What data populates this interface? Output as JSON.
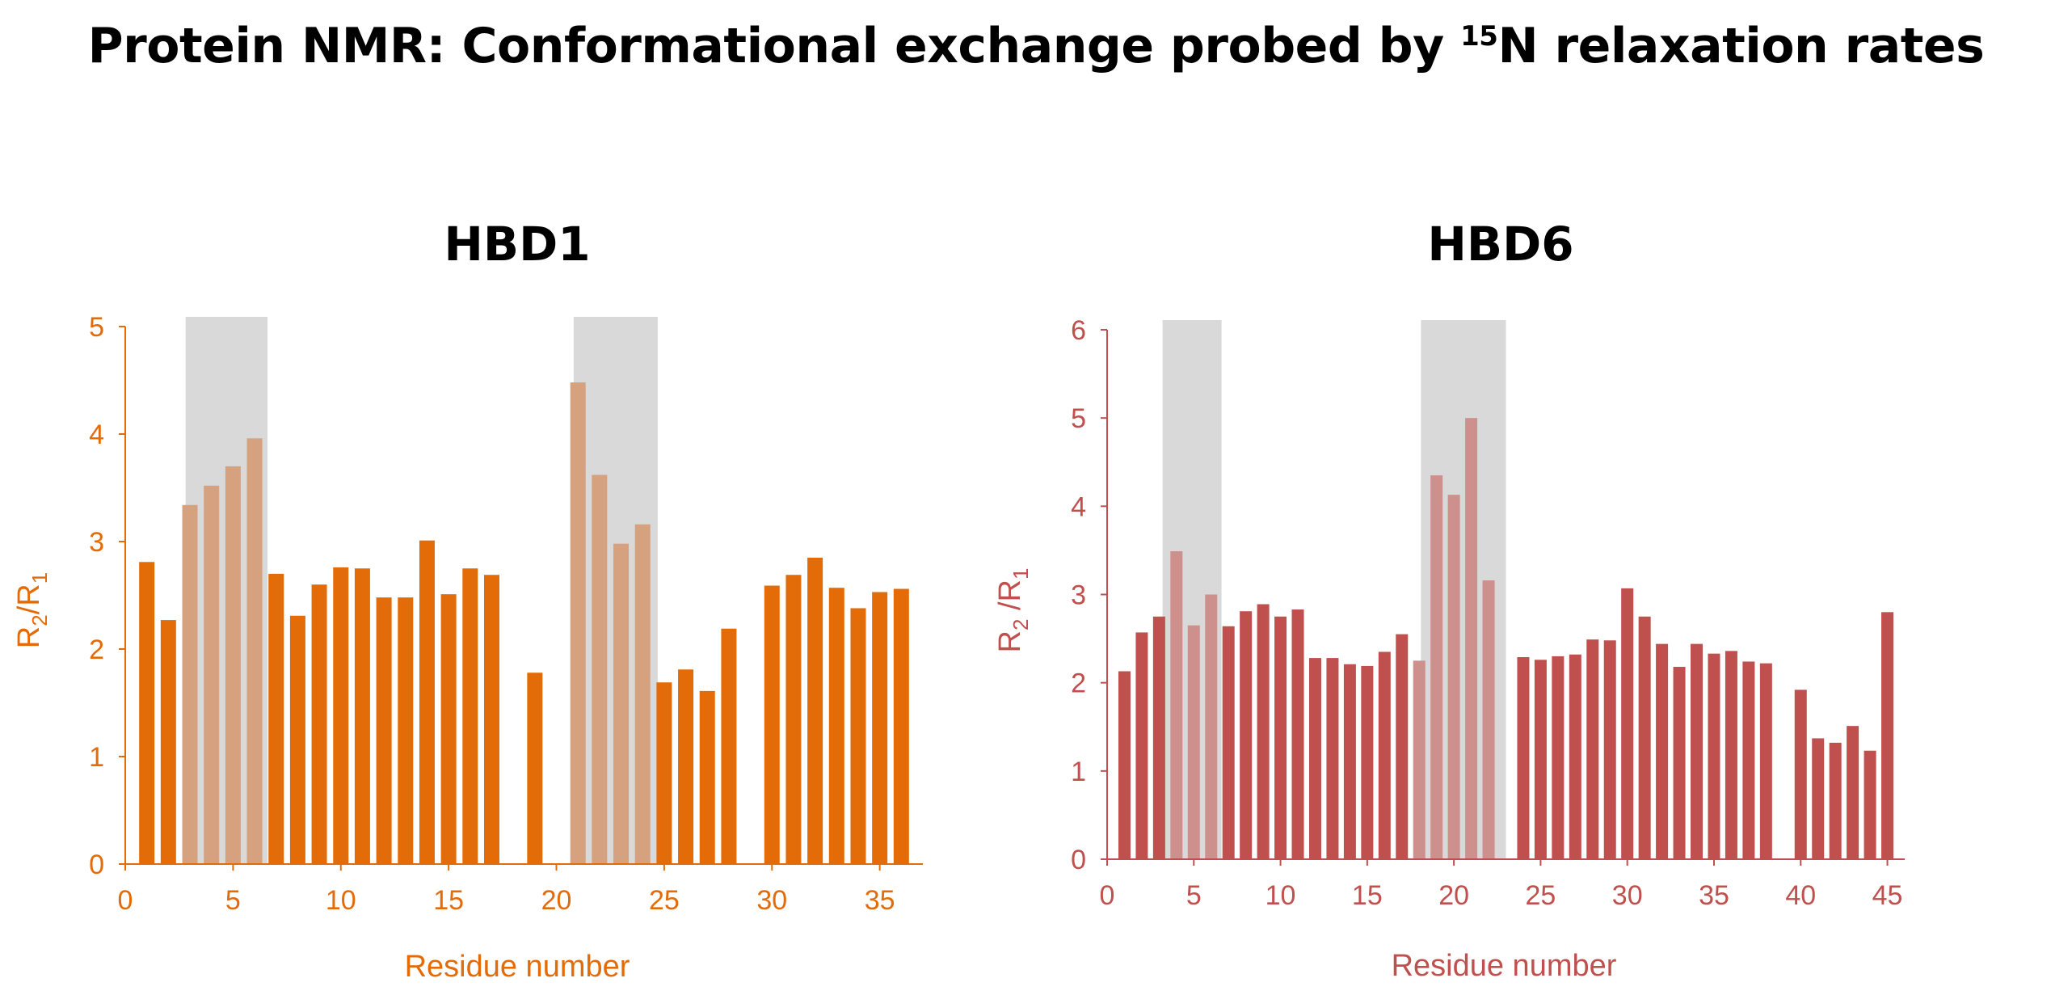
{
  "title": {
    "prefix": "Protein NMR: Conformational exchange probed by ",
    "superscript": "15",
    "suffix": "N relaxation rates"
  },
  "chart_data": [
    {
      "type": "bar",
      "title": "HBD1",
      "xlabel": "Residue number",
      "ylabel": {
        "base1": "R",
        "sub1": "2",
        "sep": "/R",
        "sub2": "1"
      },
      "color": "#E36C09",
      "highlight_color": "#D5A17E",
      "shade_color": "#D9D9D9",
      "xlim": [
        0,
        37
      ],
      "ylim": [
        0,
        5
      ],
      "xticks": [
        0,
        5,
        10,
        15,
        20,
        25,
        30,
        35
      ],
      "yticks": [
        0,
        1,
        2,
        3,
        4,
        5
      ],
      "shaded_ranges": [
        [
          2.8,
          6.6
        ],
        [
          20.8,
          24.7
        ]
      ],
      "x": [
        1,
        2,
        3,
        4,
        5,
        6,
        7,
        8,
        9,
        10,
        11,
        12,
        13,
        14,
        15,
        16,
        17,
        19,
        21,
        22,
        23,
        24,
        25,
        26,
        27,
        28,
        30,
        31,
        32,
        33,
        34,
        35,
        36
      ],
      "values": [
        2.81,
        2.27,
        3.34,
        3.52,
        3.7,
        3.96,
        2.7,
        2.31,
        2.6,
        2.76,
        2.75,
        2.48,
        2.48,
        3.01,
        2.51,
        2.75,
        2.69,
        1.78,
        4.48,
        3.62,
        2.98,
        3.16,
        1.69,
        1.81,
        1.61,
        2.19,
        2.59,
        2.69,
        2.85,
        2.57,
        2.38,
        2.53,
        2.56
      ],
      "highlighted_x": [
        3,
        4,
        5,
        6,
        21,
        22,
        23,
        24
      ]
    },
    {
      "type": "bar",
      "title": "HBD6",
      "xlabel": "Residue number",
      "ylabel": {
        "base1": "R",
        "sub1": "2",
        "sep": " /R",
        "sub2": "1"
      },
      "color": "#C0504D",
      "highlight_color": "#CD908D",
      "shade_color": "#D9D9D9",
      "xlim": [
        0,
        46
      ],
      "ylim": [
        0,
        6
      ],
      "xticks": [
        0,
        5,
        10,
        15,
        20,
        25,
        30,
        35,
        40,
        45
      ],
      "yticks": [
        0,
        1,
        2,
        3,
        4,
        5,
        6
      ],
      "shaded_ranges": [
        [
          3.2,
          6.6
        ],
        [
          18.1,
          23.0
        ]
      ],
      "x": [
        1,
        2,
        3,
        4,
        5,
        6,
        7,
        8,
        9,
        10,
        11,
        12,
        13,
        14,
        15,
        16,
        17,
        18,
        19,
        20,
        21,
        22,
        24,
        25,
        26,
        27,
        28,
        29,
        30,
        31,
        32,
        33,
        34,
        35,
        36,
        37,
        38,
        40,
        41,
        42,
        43,
        44,
        45
      ],
      "values": [
        2.13,
        2.57,
        2.75,
        3.49,
        2.65,
        3.0,
        2.64,
        2.81,
        2.89,
        2.75,
        2.83,
        2.28,
        2.28,
        2.21,
        2.19,
        2.35,
        2.55,
        2.25,
        4.35,
        4.13,
        5.0,
        3.16,
        2.29,
        2.26,
        2.3,
        2.32,
        2.49,
        2.48,
        3.07,
        2.75,
        2.44,
        2.18,
        2.44,
        2.33,
        2.36,
        2.24,
        2.22,
        1.92,
        1.37,
        1.32,
        1.51,
        1.23,
        2.8
      ],
      "highlighted_x": [
        4,
        5,
        6,
        18,
        19,
        20,
        21,
        22
      ]
    }
  ]
}
